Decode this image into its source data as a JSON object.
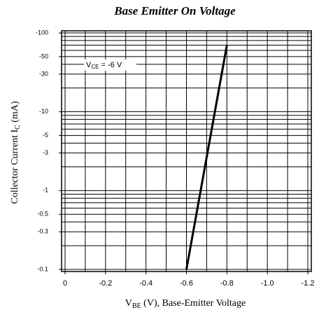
{
  "chart_data": {
    "type": "line",
    "title": "Base Emitter On Voltage",
    "xlabel": [
      "V",
      "BE",
      " (V), Base-Emitter Voltage"
    ],
    "ylabel": [
      "Collector Current I",
      "C",
      " (mA)"
    ],
    "annotation": [
      "V",
      "CE",
      " = -6 V"
    ],
    "xlim": [
      0,
      -1.2
    ],
    "xticks": [
      0,
      -0.2,
      -0.4,
      -0.6,
      -0.8,
      {
        "value": -1,
        "label": "-1.0"
      },
      -1.2
    ],
    "ylim": [
      -0.1,
      -100
    ],
    "yticks": [
      -100,
      -50,
      -30,
      -10,
      -5,
      -3,
      -1,
      -0.5,
      -0.3,
      -0.1
    ],
    "log_y": true,
    "grid": true,
    "xgrid": [
      0,
      -0.1,
      -0.2,
      -0.3,
      -0.4,
      -0.5,
      -0.6,
      -0.7,
      -0.8,
      -0.9,
      -1,
      -1.1,
      -1.2
    ],
    "ygrid": [
      -0.1,
      -0.2,
      -0.3,
      -0.4,
      -0.5,
      -0.6,
      -0.7,
      -0.8,
      -0.9,
      -1,
      -2,
      -3,
      -4,
      -5,
      -6,
      -7,
      -8,
      -9,
      -10,
      -20,
      -30,
      -40,
      -50,
      -60,
      -70,
      -80,
      -90,
      -100
    ],
    "series": [
      {
        "color": "#000000",
        "x": [
          -0.6,
          -0.8
        ],
        "values": [
          -0.1,
          -70
        ]
      }
    ]
  }
}
